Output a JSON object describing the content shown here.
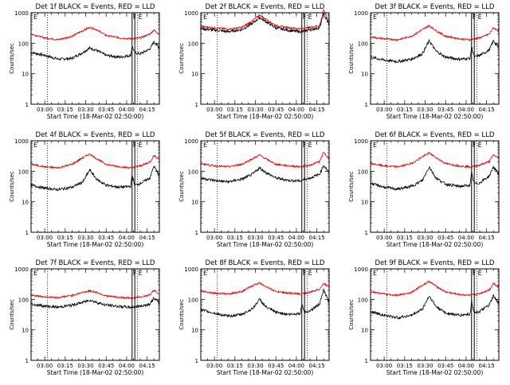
{
  "colors": {
    "events": "#000000",
    "lld": "#e00000",
    "axes": "#000000",
    "background": "#ffffff"
  },
  "shared": {
    "xlabel": "Start Time (18-Mar-02 02:50:00)",
    "ylabel": "Counts/sec",
    "y_ticklabels": [
      "1",
      "10",
      "100",
      "1000"
    ],
    "x_ticklabels": [
      "03:00",
      "03:15",
      "03:30",
      "03:45",
      "04:00",
      "04:15"
    ],
    "flag_labels": [
      "E",
      "F",
      "E"
    ]
  },
  "chart_data": [
    {
      "type": "line",
      "title": "Det  1f  BLACK = Events, RED = LLD",
      "xlim": [
        "02:50",
        "04:24"
      ],
      "ylim": [
        1,
        1000
      ],
      "yscale": "log",
      "x_ticks": [
        "03:00",
        "03:15",
        "03:30",
        "03:45",
        "04:00",
        "04:15"
      ],
      "markers_solid": [
        "04:04",
        "04:06"
      ],
      "markers_dotted": [
        "03:02",
        "04:08"
      ],
      "series": [
        {
          "name": "Events",
          "color": "#000000",
          "x": [
            "02:50",
            "03:00",
            "03:10",
            "03:20",
            "03:28",
            "03:33",
            "03:38",
            "03:45",
            "03:55",
            "04:03",
            "04:04",
            "04:06",
            "04:10",
            "04:17",
            "04:20",
            "04:24"
          ],
          "y": [
            50,
            40,
            30,
            32,
            50,
            70,
            58,
            40,
            35,
            40,
            80,
            48,
            45,
            65,
            110,
            70
          ]
        },
        {
          "name": "LLD",
          "color": "#e00000",
          "x": [
            "02:50",
            "03:00",
            "03:10",
            "03:20",
            "03:28",
            "03:33",
            "03:38",
            "03:45",
            "03:55",
            "04:03",
            "04:06",
            "04:10",
            "04:17",
            "04:20",
            "04:24"
          ],
          "y": [
            200,
            150,
            130,
            170,
            260,
            330,
            280,
            180,
            150,
            140,
            145,
            150,
            200,
            270,
            200
          ]
        }
      ]
    },
    {
      "type": "line",
      "title": "Det  2f  BLACK = Events, RED = LLD",
      "xlim": [
        "02:50",
        "04:24"
      ],
      "ylim": [
        1,
        1000
      ],
      "yscale": "log",
      "x_ticks": [
        "03:00",
        "03:15",
        "03:30",
        "03:45",
        "04:00",
        "04:15"
      ],
      "markers_solid": [
        "04:04",
        "04:06"
      ],
      "markers_dotted": [
        "03:02",
        "04:08"
      ],
      "series": [
        {
          "name": "Events",
          "color": "#000000",
          "x": [
            "02:50",
            "03:00",
            "03:10",
            "03:20",
            "03:28",
            "03:33",
            "03:38",
            "03:45",
            "03:55",
            "04:03",
            "04:06",
            "04:10",
            "04:17",
            "04:20",
            "04:24"
          ],
          "y": [
            300,
            270,
            240,
            280,
            450,
            700,
            500,
            320,
            260,
            240,
            250,
            280,
            320,
            900,
            400
          ]
        },
        {
          "name": "LLD",
          "color": "#e00000",
          "x": [
            "02:50",
            "03:00",
            "03:10",
            "03:20",
            "03:28",
            "03:33",
            "03:38",
            "03:45",
            "03:55",
            "04:03",
            "04:06",
            "04:10",
            "04:17",
            "04:20",
            "04:24"
          ],
          "y": [
            350,
            320,
            290,
            330,
            550,
            850,
            600,
            380,
            320,
            300,
            310,
            330,
            380,
            1200,
            500
          ]
        }
      ]
    },
    {
      "type": "line",
      "title": "Det  3f  BLACK = Events, RED = LLD",
      "xlim": [
        "02:50",
        "04:24"
      ],
      "ylim": [
        1,
        1000
      ],
      "yscale": "log",
      "x_ticks": [
        "03:00",
        "03:15",
        "03:30",
        "03:45",
        "04:00",
        "04:15"
      ],
      "markers_solid": [
        "04:04",
        "04:06"
      ],
      "markers_dotted": [
        "03:02",
        "04:08"
      ],
      "series": [
        {
          "name": "Events",
          "color": "#000000",
          "x": [
            "02:50",
            "03:00",
            "03:10",
            "03:20",
            "03:28",
            "03:33",
            "03:38",
            "03:45",
            "03:55",
            "04:03",
            "04:04",
            "04:06",
            "04:10",
            "04:17",
            "04:20",
            "04:24"
          ],
          "y": [
            35,
            28,
            25,
            30,
            45,
            120,
            55,
            35,
            30,
            32,
            80,
            35,
            40,
            60,
            120,
            70
          ]
        },
        {
          "name": "LLD",
          "color": "#e00000",
          "x": [
            "02:50",
            "03:00",
            "03:10",
            "03:20",
            "03:28",
            "03:33",
            "03:38",
            "03:45",
            "03:55",
            "04:03",
            "04:06",
            "04:10",
            "04:17",
            "04:20",
            "04:24"
          ],
          "y": [
            160,
            140,
            130,
            170,
            280,
            380,
            260,
            170,
            140,
            130,
            140,
            150,
            200,
            320,
            250
          ]
        }
      ]
    },
    {
      "type": "line",
      "title": "Det  4f  BLACK = Events, RED = LLD",
      "xlim": [
        "02:50",
        "04:24"
      ],
      "ylim": [
        1,
        1000
      ],
      "yscale": "log",
      "x_ticks": [
        "03:00",
        "03:15",
        "03:30",
        "03:45",
        "04:00",
        "04:15"
      ],
      "markers_solid": [
        "04:04",
        "04:06"
      ],
      "markers_dotted": [
        "03:02",
        "04:08"
      ],
      "series": [
        {
          "name": "Events",
          "color": "#000000",
          "x": [
            "02:50",
            "03:00",
            "03:10",
            "03:20",
            "03:28",
            "03:33",
            "03:38",
            "03:45",
            "03:55",
            "04:03",
            "04:04",
            "04:06",
            "04:10",
            "04:17",
            "04:20",
            "04:24"
          ],
          "y": [
            35,
            28,
            25,
            30,
            45,
            110,
            55,
            35,
            30,
            32,
            75,
            35,
            40,
            60,
            150,
            70
          ]
        },
        {
          "name": "LLD",
          "color": "#e00000",
          "x": [
            "02:50",
            "03:00",
            "03:10",
            "03:20",
            "03:28",
            "03:33",
            "03:38",
            "03:45",
            "03:55",
            "04:03",
            "04:06",
            "04:10",
            "04:17",
            "04:20",
            "04:24"
          ],
          "y": [
            170,
            140,
            130,
            170,
            280,
            370,
            260,
            170,
            140,
            130,
            140,
            150,
            200,
            330,
            250
          ]
        }
      ]
    },
    {
      "type": "line",
      "title": "Det  5f  BLACK = Events, RED = LLD",
      "xlim": [
        "02:50",
        "04:24"
      ],
      "ylim": [
        1,
        1000
      ],
      "yscale": "log",
      "x_ticks": [
        "03:00",
        "03:15",
        "03:30",
        "03:45",
        "04:00",
        "04:15"
      ],
      "markers_solid": [
        "04:04",
        "04:06"
      ],
      "markers_dotted": [
        "03:02",
        "04:08"
      ],
      "series": [
        {
          "name": "Events",
          "color": "#000000",
          "x": [
            "02:50",
            "03:00",
            "03:10",
            "03:20",
            "03:28",
            "03:33",
            "03:38",
            "03:45",
            "03:55",
            "04:03",
            "04:06",
            "04:10",
            "04:17",
            "04:20",
            "04:24"
          ],
          "y": [
            60,
            50,
            45,
            55,
            80,
            130,
            90,
            60,
            50,
            48,
            55,
            60,
            80,
            160,
            90
          ]
        },
        {
          "name": "LLD",
          "color": "#e00000",
          "x": [
            "02:50",
            "03:00",
            "03:10",
            "03:20",
            "03:28",
            "03:33",
            "03:38",
            "03:45",
            "03:55",
            "04:03",
            "04:06",
            "04:10",
            "04:17",
            "04:20",
            "04:24"
          ],
          "y": [
            180,
            150,
            140,
            170,
            260,
            340,
            250,
            170,
            150,
            140,
            150,
            160,
            210,
            420,
            250
          ]
        }
      ]
    },
    {
      "type": "line",
      "title": "Det  6f  BLACK = Events, RED = LLD",
      "xlim": [
        "02:50",
        "04:24"
      ],
      "ylim": [
        1,
        1000
      ],
      "yscale": "log",
      "x_ticks": [
        "03:00",
        "03:15",
        "03:30",
        "03:45",
        "04:00",
        "04:15"
      ],
      "markers_solid": [
        "04:04",
        "04:06"
      ],
      "markers_dotted": [
        "03:02",
        "04:08"
      ],
      "series": [
        {
          "name": "Events",
          "color": "#000000",
          "x": [
            "02:50",
            "03:00",
            "03:10",
            "03:20",
            "03:28",
            "03:33",
            "03:38",
            "03:45",
            "03:55",
            "04:03",
            "04:04",
            "04:06",
            "04:10",
            "04:17",
            "04:20",
            "04:24"
          ],
          "y": [
            40,
            30,
            26,
            32,
            50,
            140,
            60,
            38,
            32,
            35,
            90,
            38,
            42,
            70,
            140,
            80
          ]
        },
        {
          "name": "LLD",
          "color": "#e00000",
          "x": [
            "02:50",
            "03:00",
            "03:10",
            "03:20",
            "03:28",
            "03:33",
            "03:38",
            "03:45",
            "03:55",
            "04:03",
            "04:06",
            "04:10",
            "04:17",
            "04:20",
            "04:24"
          ],
          "y": [
            180,
            150,
            140,
            180,
            300,
            400,
            280,
            180,
            150,
            140,
            150,
            160,
            210,
            350,
            260
          ]
        }
      ]
    },
    {
      "type": "line",
      "title": "Det  7f  BLACK = Events, RED = LLD",
      "xlim": [
        "02:50",
        "04:24"
      ],
      "ylim": [
        1,
        1000
      ],
      "yscale": "log",
      "x_ticks": [
        "03:00",
        "03:15",
        "03:30",
        "03:45",
        "04:00",
        "04:15"
      ],
      "markers_solid": [
        "04:04",
        "04:06"
      ],
      "markers_dotted": [
        "03:02",
        "04:08"
      ],
      "series": [
        {
          "name": "Events",
          "color": "#000000",
          "x": [
            "02:50",
            "03:00",
            "03:10",
            "03:20",
            "03:28",
            "03:33",
            "03:38",
            "03:45",
            "03:55",
            "04:03",
            "04:06",
            "04:10",
            "04:17",
            "04:20",
            "04:24"
          ],
          "y": [
            70,
            60,
            55,
            65,
            80,
            95,
            80,
            65,
            58,
            55,
            58,
            60,
            70,
            110,
            75
          ]
        },
        {
          "name": "LLD",
          "color": "#e00000",
          "x": [
            "02:50",
            "03:00",
            "03:10",
            "03:20",
            "03:28",
            "03:33",
            "03:38",
            "03:45",
            "03:55",
            "04:03",
            "04:06",
            "04:10",
            "04:17",
            "04:20",
            "04:24"
          ],
          "y": [
            140,
            120,
            115,
            135,
            170,
            190,
            170,
            130,
            115,
            110,
            115,
            120,
            140,
            200,
            150
          ]
        }
      ]
    },
    {
      "type": "line",
      "title": "Det  8f  BLACK = Events, RED = LLD",
      "xlim": [
        "02:50",
        "04:24"
      ],
      "ylim": [
        1,
        1000
      ],
      "yscale": "log",
      "x_ticks": [
        "03:00",
        "03:15",
        "03:30",
        "03:45",
        "04:00",
        "04:15"
      ],
      "markers_solid": [
        "04:04",
        "04:06"
      ],
      "markers_dotted": [
        "03:02",
        "04:08"
      ],
      "series": [
        {
          "name": "Events",
          "color": "#000000",
          "x": [
            "02:50",
            "03:00",
            "03:10",
            "03:20",
            "03:28",
            "03:33",
            "03:38",
            "03:45",
            "03:55",
            "04:03",
            "04:04",
            "04:06",
            "04:10",
            "04:17",
            "04:20",
            "04:24"
          ],
          "y": [
            45,
            35,
            28,
            32,
            50,
            100,
            55,
            38,
            32,
            35,
            70,
            38,
            42,
            70,
            200,
            80
          ]
        },
        {
          "name": "LLD",
          "color": "#e00000",
          "x": [
            "02:50",
            "03:00",
            "03:10",
            "03:20",
            "03:28",
            "03:33",
            "03:38",
            "03:45",
            "03:55",
            "04:03",
            "04:06",
            "04:10",
            "04:17",
            "04:20",
            "04:24"
          ],
          "y": [
            190,
            160,
            150,
            180,
            280,
            350,
            260,
            180,
            160,
            150,
            160,
            170,
            220,
            330,
            260
          ]
        }
      ]
    },
    {
      "type": "line",
      "title": "Det  9f  BLACK = Events, RED = LLD",
      "xlim": [
        "02:50",
        "04:24"
      ],
      "ylim": [
        1,
        1000
      ],
      "yscale": "log",
      "x_ticks": [
        "03:00",
        "03:15",
        "03:30",
        "03:45",
        "04:00",
        "04:15"
      ],
      "markers_solid": [
        "04:04",
        "04:06"
      ],
      "markers_dotted": [
        "03:02",
        "04:08"
      ],
      "series": [
        {
          "name": "Events",
          "color": "#000000",
          "x": [
            "02:50",
            "03:00",
            "03:10",
            "03:20",
            "03:28",
            "03:33",
            "03:38",
            "03:45",
            "03:55",
            "04:03",
            "04:04",
            "04:06",
            "04:10",
            "04:17",
            "04:20",
            "04:24"
          ],
          "y": [
            40,
            30,
            25,
            30,
            48,
            130,
            58,
            36,
            30,
            33,
            90,
            36,
            40,
            65,
            130,
            70
          ]
        },
        {
          "name": "LLD",
          "color": "#e00000",
          "x": [
            "02:50",
            "03:00",
            "03:10",
            "03:20",
            "03:28",
            "03:33",
            "03:38",
            "03:45",
            "03:55",
            "04:03",
            "04:06",
            "04:10",
            "04:17",
            "04:20",
            "04:24"
          ],
          "y": [
            180,
            150,
            135,
            170,
            290,
            390,
            270,
            175,
            145,
            135,
            145,
            155,
            205,
            340,
            250
          ]
        }
      ]
    }
  ]
}
